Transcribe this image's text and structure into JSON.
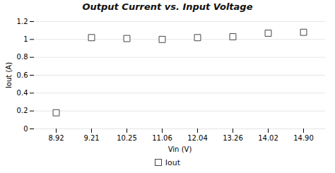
{
  "chart_data": {
    "type": "scatter",
    "title": "Output Current vs. Input Voltage",
    "xlabel": "Vin (V)",
    "ylabel": "Iout (A)",
    "categories": [
      "8.92",
      "9.21",
      "10.25",
      "11.06",
      "12.04",
      "13.26",
      "14.02",
      "14.90"
    ],
    "series": [
      {
        "name": "Iout",
        "color": "white",
        "marker": "square",
        "values": [
          0.18,
          1.02,
          1.01,
          1.0,
          1.02,
          1.03,
          1.07,
          1.08
        ]
      }
    ],
    "ylim": [
      0,
      1.2
    ],
    "yticks": [
      0,
      0.2,
      0.4,
      0.6,
      0.8,
      1,
      1.2
    ],
    "grid": true,
    "legend": "bottom"
  }
}
